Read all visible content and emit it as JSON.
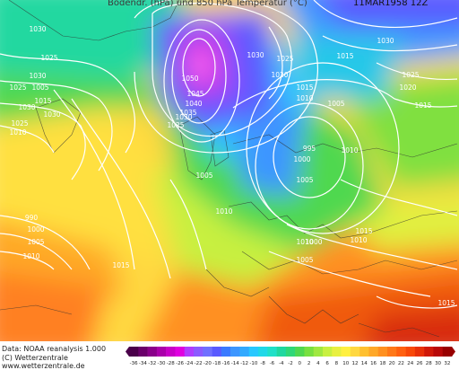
{
  "header": {
    "title": "Bodendr. (hPa) und 850 hPa Temperatur (°C)",
    "date": "11MAR1958 12Z"
  },
  "footer": {
    "line1": "Data: NOAA reanalysis 1.000",
    "line2": "(C) Wetterzentrale",
    "line3": "www.wetterzentrale.de"
  },
  "isobar_labels": [
    {
      "text": "1030"
    },
    {
      "text": "1025"
    },
    {
      "text": "1030"
    },
    {
      "text": "1025"
    },
    {
      "text": "1030"
    },
    {
      "text": "1025"
    },
    {
      "text": "1015"
    },
    {
      "text": "1010"
    },
    {
      "text": "1005"
    },
    {
      "text": "1030"
    },
    {
      "text": "1050"
    },
    {
      "text": "1045"
    },
    {
      "text": "1040"
    },
    {
      "text": "1035"
    },
    {
      "text": "1030"
    },
    {
      "text": "1025"
    },
    {
      "text": "1030"
    },
    {
      "text": "1025"
    },
    {
      "text": "1020"
    },
    {
      "text": "1015"
    },
    {
      "text": "1010"
    },
    {
      "text": "1005"
    },
    {
      "text": "995"
    },
    {
      "text": "1000"
    },
    {
      "text": "1005"
    },
    {
      "text": "1010"
    },
    {
      "text": "1005"
    },
    {
      "text": "1000"
    },
    {
      "text": "1005"
    },
    {
      "text": "1010"
    },
    {
      "text": "1030"
    },
    {
      "text": "1025"
    },
    {
      "text": "1020"
    },
    {
      "text": "1015"
    },
    {
      "text": "1010"
    },
    {
      "text": "1015"
    },
    {
      "text": "990"
    },
    {
      "text": "1000"
    },
    {
      "text": "1005"
    },
    {
      "text": "1010"
    },
    {
      "text": "1015"
    },
    {
      "text": "1010"
    },
    {
      "text": "1015"
    },
    {
      "text": "1015"
    }
  ],
  "temperature_scale": {
    "labels": [
      "-36",
      "-34",
      "-32",
      "-30",
      "-28",
      "-26",
      "-24",
      "-22",
      "-20",
      "-18",
      "-16",
      "-14",
      "-12",
      "-10",
      "-8",
      "-6",
      "-4",
      "-2",
      "0",
      "2",
      "4",
      "6",
      "8",
      "10",
      "12",
      "14",
      "16",
      "18",
      "20",
      "22",
      "24",
      "26",
      "28",
      "30",
      "32"
    ],
    "colors": [
      "#4a004a",
      "#6a006a",
      "#8a008a",
      "#aa00aa",
      "#c800c8",
      "#e000e0",
      "#b03cff",
      "#8c5aff",
      "#7070ff",
      "#5a5aff",
      "#3a7aff",
      "#3c96ff",
      "#32aaff",
      "#28c8ff",
      "#20d8e8",
      "#20e0c8",
      "#20d8a0",
      "#30d878",
      "#50d850",
      "#78e040",
      "#a0e840",
      "#c8f040",
      "#e8f040",
      "#fff040",
      "#ffd840",
      "#ffc030",
      "#ffa828",
      "#ff9020",
      "#ff7818",
      "#ff6010",
      "#f84808",
      "#e83008",
      "#d01808",
      "#b80808",
      "#980000"
    ]
  }
}
